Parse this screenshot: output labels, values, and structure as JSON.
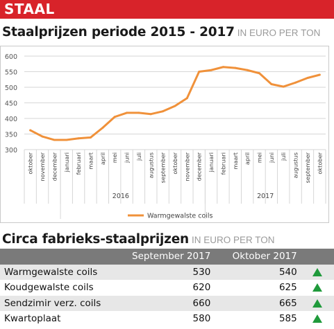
{
  "banner": {
    "label": "STAAL"
  },
  "chart_title": {
    "main": "Staalprijzen periode 2015 - 2017",
    "unit": "IN EURO PER TON"
  },
  "chart_data": {
    "type": "line",
    "title": "Staalprijzen periode 2015 - 2017",
    "ylim": [
      300,
      600
    ],
    "yticks": [
      300,
      350,
      400,
      450,
      500,
      550,
      600
    ],
    "grid": true,
    "legend": "bottom",
    "categories": [
      "oktober",
      "november",
      "december",
      "januari",
      "februari",
      "maart",
      "april",
      "mei",
      "juni",
      "juli",
      "augustus",
      "september",
      "oktober",
      "november",
      "december",
      "januari",
      "februari",
      "maart",
      "april",
      "mei",
      "juni",
      "juli",
      "augustus",
      "september",
      "oktober"
    ],
    "year_labels": [
      {
        "label": "2016",
        "index": 7.5
      },
      {
        "label": "2017",
        "index": 19.5
      }
    ],
    "series": [
      {
        "name": "Warmgewalste  coils",
        "color": "#f0913a",
        "values": [
          362,
          342,
          331,
          331,
          336,
          339,
          370,
          405,
          418,
          418,
          414,
          423,
          440,
          465,
          550,
          555,
          565,
          562,
          555,
          545,
          510,
          502,
          515,
          530,
          540
        ]
      }
    ]
  },
  "table_title": {
    "main": "Circa fabrieks-staalprijzen",
    "unit": "IN EURO PER TON"
  },
  "table": {
    "headers": [
      "",
      "September 2017",
      "Oktober 2017"
    ],
    "rows": [
      {
        "name": "Warmgewalste coils",
        "sep": "530",
        "okt": "540",
        "trend": "up-arrow-icon"
      },
      {
        "name": "Koudgewalste coils",
        "sep": "620",
        "okt": "625",
        "trend": "up-arrow-icon"
      },
      {
        "name": "Sendzimir verz. coils",
        "sep": "660",
        "okt": "665",
        "trend": "up-arrow-icon"
      },
      {
        "name": "Kwartoplaat",
        "sep": "580",
        "okt": "585",
        "trend": "up-arrow-icon"
      }
    ]
  },
  "colors": {
    "banner": "#d8232a",
    "line": "#f0913a",
    "header_bg": "#7a7a7a",
    "arrow": "#1f9a3b"
  }
}
